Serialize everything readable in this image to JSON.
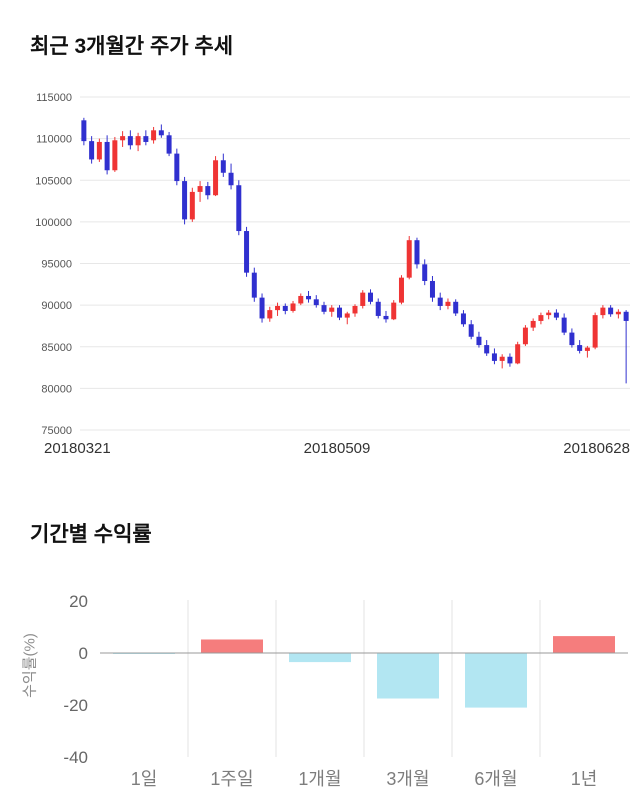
{
  "chart_data": [
    {
      "type": "candlestick",
      "title": "최근 3개월간 주가 추세",
      "ylim": [
        75000,
        115000
      ],
      "yticks": [
        75000,
        80000,
        85000,
        90000,
        95000,
        100000,
        105000,
        110000,
        115000
      ],
      "x_labels": [
        "20180321",
        "20180509",
        "20180628"
      ],
      "up_color": "#ef3434",
      "down_color": "#3030cf",
      "grid_color": "#e7e7e7",
      "tick_color": "#555555",
      "candles": [
        [
          112200,
          112500,
          109200,
          109700
        ],
        [
          109700,
          110300,
          107000,
          107500
        ],
        [
          107500,
          110000,
          107200,
          109600
        ],
        [
          109600,
          110400,
          105700,
          106200
        ],
        [
          106200,
          110200,
          106000,
          109800
        ],
        [
          109800,
          110900,
          109000,
          110300
        ],
        [
          110300,
          111000,
          108700,
          109200
        ],
        [
          109200,
          110700,
          108500,
          110300
        ],
        [
          110300,
          111000,
          109200,
          109600
        ],
        [
          109800,
          111400,
          109400,
          111000
        ],
        [
          111000,
          111700,
          110100,
          110400
        ],
        [
          110400,
          110800,
          107900,
          108200
        ],
        [
          108200,
          108800,
          104400,
          104900
        ],
        [
          104900,
          105400,
          99700,
          100300
        ],
        [
          100300,
          104100,
          100000,
          103600
        ],
        [
          103600,
          104900,
          102400,
          104300
        ],
        [
          104300,
          104800,
          102700,
          103200
        ],
        [
          103200,
          107900,
          103100,
          107400
        ],
        [
          107400,
          108200,
          105400,
          105900
        ],
        [
          105900,
          107000,
          103900,
          104400
        ],
        [
          104400,
          105000,
          98400,
          98900
        ],
        [
          98900,
          99400,
          93400,
          93900
        ],
        [
          93900,
          94500,
          90400,
          90900
        ],
        [
          90900,
          91400,
          87900,
          88400
        ],
        [
          88400,
          89800,
          88000,
          89400
        ],
        [
          89400,
          90300,
          88700,
          89900
        ],
        [
          89900,
          90200,
          88900,
          89300
        ],
        [
          89300,
          90500,
          89100,
          90200
        ],
        [
          90200,
          91400,
          90000,
          91100
        ],
        [
          91100,
          91700,
          90300,
          90700
        ],
        [
          90700,
          91200,
          89700,
          90000
        ],
        [
          90000,
          90400,
          88900,
          89200
        ],
        [
          89200,
          90000,
          88600,
          89700
        ],
        [
          89700,
          90000,
          88200,
          88500
        ],
        [
          88500,
          89200,
          87700,
          89000
        ],
        [
          89000,
          90100,
          88600,
          89900
        ],
        [
          89900,
          91800,
          89600,
          91500
        ],
        [
          91500,
          91900,
          90100,
          90400
        ],
        [
          90400,
          90800,
          88400,
          88700
        ],
        [
          88700,
          89300,
          87900,
          88300
        ],
        [
          88300,
          90600,
          88200,
          90300
        ],
        [
          90300,
          93600,
          90100,
          93300
        ],
        [
          93300,
          98300,
          93100,
          97800
        ],
        [
          97800,
          98100,
          94400,
          94900
        ],
        [
          94900,
          95500,
          92400,
          92900
        ],
        [
          92900,
          93500,
          90400,
          90900
        ],
        [
          90900,
          91500,
          89400,
          89900
        ],
        [
          89900,
          90800,
          89500,
          90400
        ],
        [
          90400,
          90700,
          88700,
          89000
        ],
        [
          89000,
          89400,
          87400,
          87700
        ],
        [
          87700,
          88200,
          85900,
          86200
        ],
        [
          86200,
          86800,
          84900,
          85200
        ],
        [
          85200,
          85800,
          83900,
          84200
        ],
        [
          84200,
          84800,
          82900,
          83300
        ],
        [
          83300,
          84100,
          82400,
          83800
        ],
        [
          83800,
          84200,
          82600,
          83000
        ],
        [
          83000,
          85600,
          82900,
          85300
        ],
        [
          85300,
          87600,
          85100,
          87300
        ],
        [
          87300,
          88400,
          86900,
          88100
        ],
        [
          88100,
          89100,
          87700,
          88800
        ],
        [
          88800,
          89400,
          88300,
          89100
        ],
        [
          89100,
          89500,
          88200,
          88500
        ],
        [
          88500,
          89000,
          86400,
          86700
        ],
        [
          86700,
          87200,
          84900,
          85200
        ],
        [
          85200,
          85800,
          84200,
          84500
        ],
        [
          84500,
          85100,
          83700,
          84900
        ],
        [
          84900,
          89100,
          84700,
          88800
        ],
        [
          88800,
          90000,
          88400,
          89700
        ],
        [
          89700,
          90000,
          88600,
          88900
        ],
        [
          88900,
          89500,
          88400,
          89200
        ],
        [
          89200,
          89400,
          80600,
          88100
        ]
      ]
    },
    {
      "type": "bar",
      "title": "기간별 수익률",
      "ylabel": "수익률(%)",
      "categories": [
        "1일",
        "1주일",
        "1개월",
        "3개월",
        "6개월",
        "1년"
      ],
      "values": [
        -0.2,
        5.2,
        -3.5,
        -17.5,
        -21.0,
        6.5
      ],
      "ylim": [
        -40,
        20
      ],
      "yticks": [
        20,
        0,
        -20,
        -40
      ],
      "positive_color": "#f57d7d",
      "negative_color": "#b2e6f2",
      "grid_color": "#e3e3e3",
      "zero_line_color": "#999999",
      "tick_color": "#666666",
      "category_color": "#7d7d7d"
    }
  ]
}
